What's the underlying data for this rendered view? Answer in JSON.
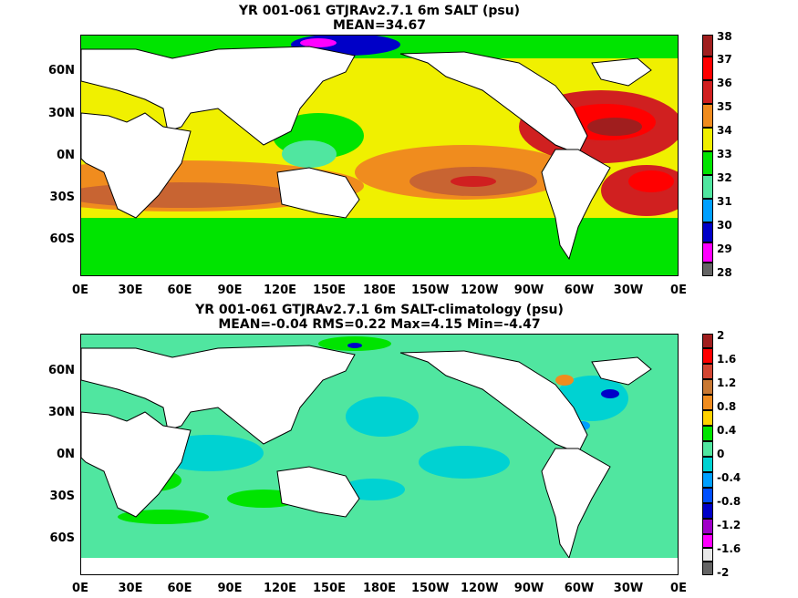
{
  "panel1": {
    "title_line1": "YR 001-061 GTJRAv2.7.1 6m SALT (psu)",
    "title_line2": "MEAN=34.67",
    "colorbar_labels": [
      "38",
      "37",
      "36",
      "35",
      "34",
      "33",
      "32",
      "31",
      "30",
      "29",
      "28"
    ],
    "colorbar_colors": [
      "#e8e8e8",
      "#ff0000",
      "#d02020",
      "#c86432",
      "#f08c1e",
      "#ffd200",
      "#f0f000",
      "#00e400",
      "#50e6a0",
      "#00d2d2",
      "#00a0ff",
      "#0050ff",
      "#0000c8",
      "#a000c8",
      "#ff00ff",
      "#646464"
    ]
  },
  "panel2": {
    "title_line1": "YR 001-061 GTJRAv2.7.1 6m SALT-climatology (psu)",
    "title_line2": "MEAN=-0.04   RMS=0.22   Max=4.15   Min=-4.47",
    "colorbar_labels": [
      "2",
      "1.6",
      "1.2",
      "0.8",
      "0.4",
      "0",
      "-0.4",
      "-0.8",
      "-1.2",
      "-1.6",
      "-2"
    ],
    "colorbar_colors": [
      "#a01e1e",
      "#ff0000",
      "#d24632",
      "#c87832",
      "#f08c1e",
      "#ffd200",
      "#00e400",
      "#50e6a0",
      "#00d2d2",
      "#00a0ff",
      "#0050ff",
      "#0000c8",
      "#a000c8",
      "#ff00ff",
      "#e8e8e8",
      "#646464"
    ]
  },
  "axes": {
    "lat_labels": [
      "60N",
      "30N",
      "0N",
      "30S",
      "60S"
    ],
    "lon_labels": [
      "0E",
      "30E",
      "60E",
      "90E",
      "120E",
      "150E",
      "180E",
      "150W",
      "120W",
      "90W",
      "60W",
      "30W",
      "0E"
    ]
  }
}
